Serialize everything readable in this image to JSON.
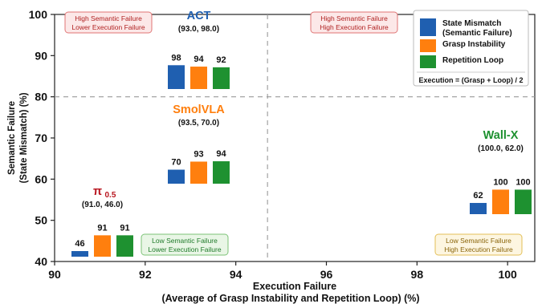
{
  "chart_data": {
    "type": "scatter",
    "xlabel": "Execution Failure",
    "xlabel_sub": "(Average of Grasp Instability and Repetition Loop) (%)",
    "ylabel": "Semantic Failure",
    "ylabel_sub": "(State Mismatch) (%)",
    "xlim": [
      90,
      100.6
    ],
    "ylim": [
      40,
      100
    ],
    "xticks": [
      90,
      92,
      94,
      96,
      98,
      100
    ],
    "yticks": [
      40,
      50,
      60,
      70,
      80,
      90,
      100
    ],
    "divider_x": 94.7,
    "divider_y": 80,
    "series": [
      {
        "name": "State Mismatch\n(Semantic Failure)",
        "color": "#1f5fb0"
      },
      {
        "name": "Grasp Instability",
        "color": "#ff7f0e"
      },
      {
        "name": "Repetition Loop",
        "color": "#1e9130"
      }
    ],
    "legend_note": "Execution = (Grasp + Loop) / 2",
    "legend_position": "top-right",
    "models": [
      {
        "label": "ACT",
        "coords": "(93.0, 98.0)",
        "x": 93.0,
        "y": 98.0,
        "color": "#1f5fb0",
        "values": [
          98,
          94,
          92
        ]
      },
      {
        "label": "SmolVLA",
        "coords": "(93.5, 70.0)",
        "x": 93.5,
        "y": 70.0,
        "color": "#ff7f0e",
        "values": [
          70,
          93,
          94
        ]
      },
      {
        "label": "Wall-X",
        "coords": "(100.0, 62.0)",
        "x": 100.0,
        "y": 62.0,
        "color": "#1e9130",
        "values": [
          62,
          100,
          100
        ]
      },
      {
        "label": "π",
        "label_sub": "0.5",
        "coords": "(91.0, 46.0)",
        "x": 91.0,
        "y": 46.0,
        "color": "#b8141e",
        "values": [
          46,
          91,
          91
        ]
      }
    ],
    "quadrants": [
      {
        "line1": "High Semantic Failure",
        "line2": "Lower Execution Failure",
        "position": "top-left",
        "style": "red"
      },
      {
        "line1": "High Semantic Failure",
        "line2": "High Execution Failure",
        "position": "top-right",
        "style": "red"
      },
      {
        "line1": "Low Semantic Failure",
        "line2": "Lower Execution Failure",
        "position": "bottom-left",
        "style": "green"
      },
      {
        "line1": "Low Semantic Failure",
        "line2": "High Execution Failure",
        "position": "bottom-right",
        "style": "yellow"
      }
    ]
  }
}
